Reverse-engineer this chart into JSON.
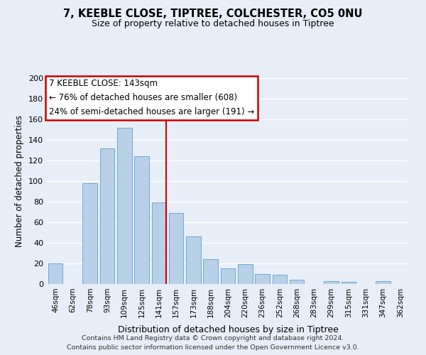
{
  "title1": "7, KEEBLE CLOSE, TIPTREE, COLCHESTER, CO5 0NU",
  "title2": "Size of property relative to detached houses in Tiptree",
  "xlabel": "Distribution of detached houses by size in Tiptree",
  "ylabel": "Number of detached properties",
  "categories": [
    "46sqm",
    "62sqm",
    "78sqm",
    "93sqm",
    "109sqm",
    "125sqm",
    "141sqm",
    "157sqm",
    "173sqm",
    "188sqm",
    "204sqm",
    "220sqm",
    "236sqm",
    "252sqm",
    "268sqm",
    "283sqm",
    "299sqm",
    "315sqm",
    "331sqm",
    "347sqm",
    "362sqm"
  ],
  "values": [
    20,
    0,
    98,
    132,
    152,
    124,
    79,
    69,
    46,
    24,
    15,
    19,
    10,
    9,
    4,
    0,
    3,
    2,
    0,
    3,
    0
  ],
  "bar_color": "#b8d0e8",
  "bar_edge_color": "#6aaad4",
  "highlight_index": 6,
  "highlight_line_color": "#cc0000",
  "ylim": [
    0,
    200
  ],
  "yticks": [
    0,
    20,
    40,
    60,
    80,
    100,
    120,
    140,
    160,
    180,
    200
  ],
  "annotation_title": "7 KEEBLE CLOSE: 143sqm",
  "annotation_line1": "← 76% of detached houses are smaller (608)",
  "annotation_line2": "24% of semi-detached houses are larger (191) →",
  "annotation_box_color": "#ffffff",
  "annotation_box_edge": "#cc0000",
  "footer1": "Contains HM Land Registry data © Crown copyright and database right 2024.",
  "footer2": "Contains public sector information licensed under the Open Government Licence v3.0.",
  "background_color": "#e8eef7",
  "grid_color": "#ffffff"
}
